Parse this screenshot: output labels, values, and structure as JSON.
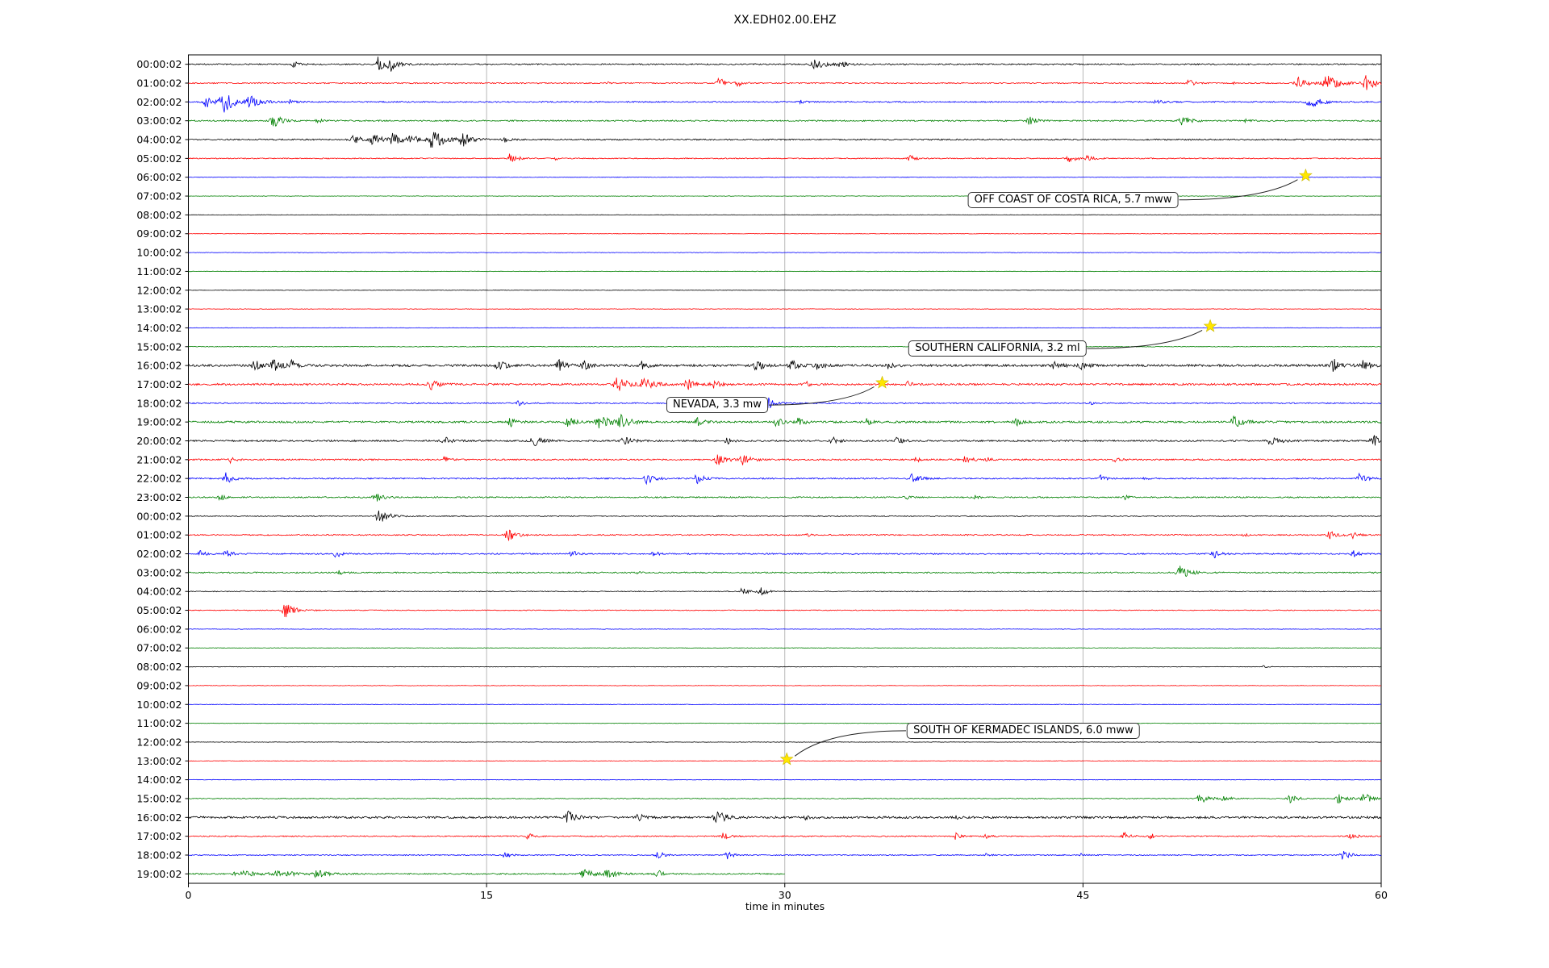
{
  "title": "XX.EDH02.00.EHZ",
  "chart_data": {
    "type": "line",
    "subtype": "helicorder-dayplot",
    "title": "XX.EDH02.00.EHZ",
    "xlabel": "time in minutes",
    "x_range": [
      0,
      60
    ],
    "x_ticks": [
      0,
      15,
      30,
      45,
      60
    ],
    "grid": {
      "vertical_at": [
        15,
        30,
        45
      ],
      "color": "#b0b0b0"
    },
    "trace_colors_cycle": [
      "#000000",
      "#ff0000",
      "#0000ff",
      "#008000"
    ],
    "event_star_color": "#ffe600",
    "bursts_format": "[minute, amplitude_px, duration_min]",
    "rows": [
      {
        "label": "00:00:02",
        "noise": 0.8,
        "bursts": [
          [
            5.3,
            4,
            0.4
          ],
          [
            9.6,
            14,
            0.5
          ],
          [
            10.2,
            8,
            0.6
          ],
          [
            31.5,
            7,
            0.8
          ],
          [
            32.8,
            4,
            0.6
          ]
        ]
      },
      {
        "label": "01:00:02",
        "noise": 0.7,
        "bursts": [
          [
            21,
            2,
            0.3
          ],
          [
            26.7,
            7,
            0.5
          ],
          [
            27.6,
            5,
            0.4
          ],
          [
            50.3,
            5,
            0.5
          ],
          [
            52.5,
            2,
            0.3
          ],
          [
            55.8,
            9,
            0.7
          ],
          [
            57.3,
            11,
            0.9
          ],
          [
            59.2,
            10,
            0.8
          ]
        ]
      },
      {
        "label": "02:00:02",
        "noise": 0.8,
        "bursts": [
          [
            0.9,
            8,
            0.6
          ],
          [
            1.8,
            12,
            1.0
          ],
          [
            3.1,
            7,
            0.8
          ],
          [
            5.1,
            3,
            0.4
          ],
          [
            30.8,
            2,
            0.3
          ],
          [
            48.7,
            3.5,
            0.5
          ],
          [
            56.4,
            9,
            0.8
          ]
        ]
      },
      {
        "label": "03:00:02",
        "noise": 0.8,
        "bursts": [
          [
            4.3,
            8,
            0.7
          ],
          [
            6.5,
            3,
            0.4
          ],
          [
            42.3,
            5,
            0.6
          ],
          [
            50.0,
            7,
            0.7
          ],
          [
            53.2,
            2,
            0.3
          ]
        ]
      },
      {
        "label": "04:00:02",
        "noise": 0.8,
        "bursts": [
          [
            8.3,
            5,
            0.8
          ],
          [
            9.3,
            6,
            0.8
          ],
          [
            10.3,
            7,
            0.7
          ],
          [
            11.2,
            6,
            0.6
          ],
          [
            12.3,
            13,
            0.9
          ],
          [
            13.8,
            8,
            0.8
          ],
          [
            15.9,
            3,
            0.5
          ]
        ]
      },
      {
        "label": "05:00:02",
        "noise": 0.6,
        "bursts": [
          [
            16.2,
            6,
            0.6
          ],
          [
            18.5,
            2,
            0.3
          ],
          [
            36.3,
            4.5,
            0.5
          ],
          [
            44.3,
            5,
            0.6
          ],
          [
            45.2,
            4,
            0.5
          ]
        ]
      },
      {
        "label": "06:00:02",
        "noise": 0.3,
        "bursts": []
      },
      {
        "label": "07:00:02",
        "noise": 0.3,
        "bursts": []
      },
      {
        "label": "08:00:02",
        "noise": 0.3,
        "bursts": []
      },
      {
        "label": "09:00:02",
        "noise": 0.3,
        "bursts": []
      },
      {
        "label": "10:00:02",
        "noise": 0.3,
        "bursts": []
      },
      {
        "label": "11:00:02",
        "noise": 0.3,
        "bursts": []
      },
      {
        "label": "12:00:02",
        "noise": 0.3,
        "bursts": []
      },
      {
        "label": "13:00:02",
        "noise": 0.3,
        "bursts": []
      },
      {
        "label": "14:00:02",
        "noise": 0.3,
        "bursts": []
      },
      {
        "label": "15:00:02",
        "noise": 0.35,
        "bursts": []
      },
      {
        "label": "16:00:02",
        "noise": 1.4,
        "bursts": [
          [
            3.3,
            7,
            0.6
          ],
          [
            4.3,
            7,
            0.6
          ],
          [
            5.2,
            6,
            0.5
          ],
          [
            15.6,
            6,
            0.6
          ],
          [
            18.6,
            7,
            0.6
          ],
          [
            19.9,
            6,
            0.5
          ],
          [
            22.8,
            5,
            0.5
          ],
          [
            28.6,
            7,
            0.6
          ],
          [
            30.3,
            7,
            0.6
          ],
          [
            31.6,
            5,
            0.5
          ],
          [
            35.2,
            4,
            0.4
          ],
          [
            43.6,
            6,
            0.6
          ],
          [
            44.9,
            5,
            0.5
          ],
          [
            57.6,
            8,
            0.7
          ],
          [
            59.1,
            6,
            0.6
          ]
        ]
      },
      {
        "label": "17:00:02",
        "noise": 1.2,
        "bursts": [
          [
            12.2,
            7,
            0.6
          ],
          [
            21.6,
            9,
            0.8
          ],
          [
            22.9,
            9,
            0.8
          ],
          [
            25.1,
            7,
            0.6
          ],
          [
            26.4,
            6,
            0.5
          ],
          [
            31.1,
            3,
            0.4
          ],
          [
            36.2,
            3,
            0.4
          ]
        ]
      },
      {
        "label": "18:00:02",
        "noise": 0.7,
        "bursts": [
          [
            16.6,
            3,
            0.4
          ],
          [
            29.2,
            7,
            0.5
          ],
          [
            45.4,
            2,
            0.3
          ]
        ]
      },
      {
        "label": "19:00:02",
        "noise": 1.2,
        "bursts": [
          [
            16.2,
            6,
            0.5
          ],
          [
            19.1,
            6,
            0.6
          ],
          [
            20.7,
            9,
            0.9
          ],
          [
            21.8,
            8,
            0.7
          ],
          [
            25.6,
            5,
            0.5
          ],
          [
            29.6,
            6,
            0.5
          ],
          [
            30.7,
            5,
            0.5
          ],
          [
            34.1,
            4,
            0.4
          ],
          [
            41.6,
            5,
            0.5
          ],
          [
            52.6,
            8,
            0.7
          ]
        ]
      },
      {
        "label": "20:00:02",
        "noise": 1.0,
        "bursts": [
          [
            12.9,
            5,
            0.5
          ],
          [
            17.4,
            7,
            0.7
          ],
          [
            21.9,
            6,
            0.6
          ],
          [
            27.1,
            4,
            0.4
          ],
          [
            32.4,
            5,
            0.5
          ],
          [
            35.6,
            5,
            0.5
          ],
          [
            54.4,
            7,
            0.7
          ],
          [
            59.6,
            8,
            0.6
          ]
        ]
      },
      {
        "label": "21:00:02",
        "noise": 0.9,
        "bursts": [
          [
            2.1,
            4,
            0.4
          ],
          [
            12.9,
            4,
            0.4
          ],
          [
            26.6,
            7,
            0.7
          ],
          [
            27.9,
            7,
            0.6
          ],
          [
            36.6,
            4,
            0.4
          ],
          [
            39.1,
            5,
            0.5
          ],
          [
            40.1,
            4,
            0.4
          ],
          [
            46.6,
            3,
            0.4
          ]
        ]
      },
      {
        "label": "22:00:02",
        "noise": 0.8,
        "bursts": [
          [
            1.9,
            7,
            0.6
          ],
          [
            23.1,
            7,
            0.7
          ],
          [
            25.6,
            6,
            0.6
          ],
          [
            36.4,
            7,
            0.6
          ],
          [
            45.9,
            4,
            0.4
          ],
          [
            48.1,
            2.5,
            0.3
          ],
          [
            58.9,
            6,
            0.6
          ]
        ]
      },
      {
        "label": "23:00:02",
        "noise": 0.8,
        "bursts": [
          [
            1.6,
            4,
            0.4
          ],
          [
            9.4,
            6,
            0.6
          ],
          [
            36.1,
            3,
            0.4
          ],
          [
            39.6,
            2.5,
            0.3
          ],
          [
            47.1,
            3,
            0.4
          ]
        ]
      },
      {
        "label": "00:00:02",
        "noise": 0.6,
        "bursts": [
          [
            9.6,
            9,
            0.8
          ]
        ]
      },
      {
        "label": "01:00:02",
        "noise": 0.7,
        "bursts": [
          [
            16.1,
            7,
            0.7
          ],
          [
            31.1,
            2.5,
            0.3
          ],
          [
            53.1,
            2,
            0.3
          ],
          [
            57.4,
            6,
            0.6
          ],
          [
            58.6,
            4,
            0.4
          ]
        ]
      },
      {
        "label": "02:00:02",
        "noise": 0.8,
        "bursts": [
          [
            0.6,
            4,
            0.4
          ],
          [
            1.9,
            5,
            0.5
          ],
          [
            7.4,
            5,
            0.5
          ],
          [
            19.3,
            4,
            0.5
          ],
          [
            23.4,
            3.5,
            0.4
          ],
          [
            51.6,
            5,
            0.5
          ],
          [
            58.6,
            4,
            0.5
          ]
        ]
      },
      {
        "label": "03:00:02",
        "noise": 0.8,
        "bursts": [
          [
            7.6,
            3.5,
            0.4
          ],
          [
            22.6,
            2,
            0.3
          ],
          [
            49.9,
            8,
            0.8
          ]
        ]
      },
      {
        "label": "04:00:02",
        "noise": 0.5,
        "bursts": [
          [
            27.9,
            6,
            0.5
          ],
          [
            28.8,
            6,
            0.5
          ]
        ]
      },
      {
        "label": "05:00:02",
        "noise": 0.5,
        "bursts": [
          [
            4.9,
            9,
            0.8
          ]
        ]
      },
      {
        "label": "06:00:02",
        "noise": 0.3,
        "bursts": []
      },
      {
        "label": "07:00:02",
        "noise": 0.3,
        "bursts": []
      },
      {
        "label": "08:00:02",
        "noise": 0.3,
        "bursts": [
          [
            54.1,
            1.5,
            0.3
          ]
        ]
      },
      {
        "label": "09:00:02",
        "noise": 0.3,
        "bursts": []
      },
      {
        "label": "10:00:02",
        "noise": 0.3,
        "bursts": []
      },
      {
        "label": "11:00:02",
        "noise": 0.3,
        "bursts": []
      },
      {
        "label": "12:00:02",
        "noise": 0.3,
        "bursts": []
      },
      {
        "label": "13:00:02",
        "noise": 0.3,
        "bursts": []
      },
      {
        "label": "14:00:02",
        "noise": 0.3,
        "bursts": []
      },
      {
        "label": "15:00:02",
        "noise": 0.5,
        "bursts": [
          [
            50.9,
            7,
            0.7
          ],
          [
            52.1,
            5,
            0.5
          ],
          [
            55.4,
            6,
            0.6
          ],
          [
            57.9,
            7,
            0.7
          ],
          [
            59.1,
            8,
            0.6
          ]
        ]
      },
      {
        "label": "16:00:02",
        "noise": 1.3,
        "bursts": [
          [
            19.1,
            7,
            0.7
          ],
          [
            22.6,
            5,
            0.5
          ],
          [
            26.6,
            8,
            0.7
          ],
          [
            31.1,
            3,
            0.4
          ],
          [
            38.6,
            2,
            0.3
          ]
        ]
      },
      {
        "label": "17:00:02",
        "noise": 0.7,
        "bursts": [
          [
            17.1,
            4,
            0.4
          ],
          [
            26.9,
            5,
            0.5
          ],
          [
            38.6,
            4,
            0.4
          ],
          [
            40.1,
            3,
            0.4
          ],
          [
            47.1,
            5,
            0.5
          ],
          [
            48.4,
            4,
            0.4
          ],
          [
            58.4,
            5,
            0.5
          ]
        ]
      },
      {
        "label": "18:00:02",
        "noise": 0.6,
        "bursts": [
          [
            15.9,
            4,
            0.5
          ],
          [
            23.6,
            5,
            0.6
          ],
          [
            27.1,
            5,
            0.5
          ],
          [
            40.1,
            2.5,
            0.3
          ],
          [
            44.9,
            2.5,
            0.3
          ],
          [
            58.1,
            6,
            0.6
          ]
        ]
      },
      {
        "label": "19:00:02",
        "noise": 0.8,
        "end": 30,
        "bursts": [
          [
            2.6,
            4,
            1.5
          ],
          [
            4.5,
            4,
            1.5
          ],
          [
            6.5,
            4,
            1.0
          ],
          [
            19.9,
            6,
            0.8
          ],
          [
            21.1,
            6,
            0.7
          ],
          [
            23.6,
            5,
            0.5
          ]
        ]
      }
    ],
    "events": [
      {
        "label": "OFF COAST OF COSTA RICA, 5.7 mww",
        "star_row": 6,
        "star_t": 56.2,
        "box_row": 7.2,
        "box_t": 44.5,
        "attach": "right"
      },
      {
        "label": "SOUTHERN CALIFORNIA, 3.2 ml",
        "star_row": 14,
        "star_t": 51.4,
        "box_row": 15.1,
        "box_t": 40.7,
        "attach": "right"
      },
      {
        "label": "NEVADA, 3.3 mw",
        "star_row": 17,
        "star_t": 34.9,
        "box_row": 18.1,
        "box_t": 26.6,
        "attach": "right"
      },
      {
        "label": "SOUTH OF KERMADEC ISLANDS, 6.0 mww",
        "star_row": 37,
        "star_t": 30.1,
        "box_row": 35.4,
        "box_t": 42.0,
        "attach": "left"
      }
    ]
  }
}
